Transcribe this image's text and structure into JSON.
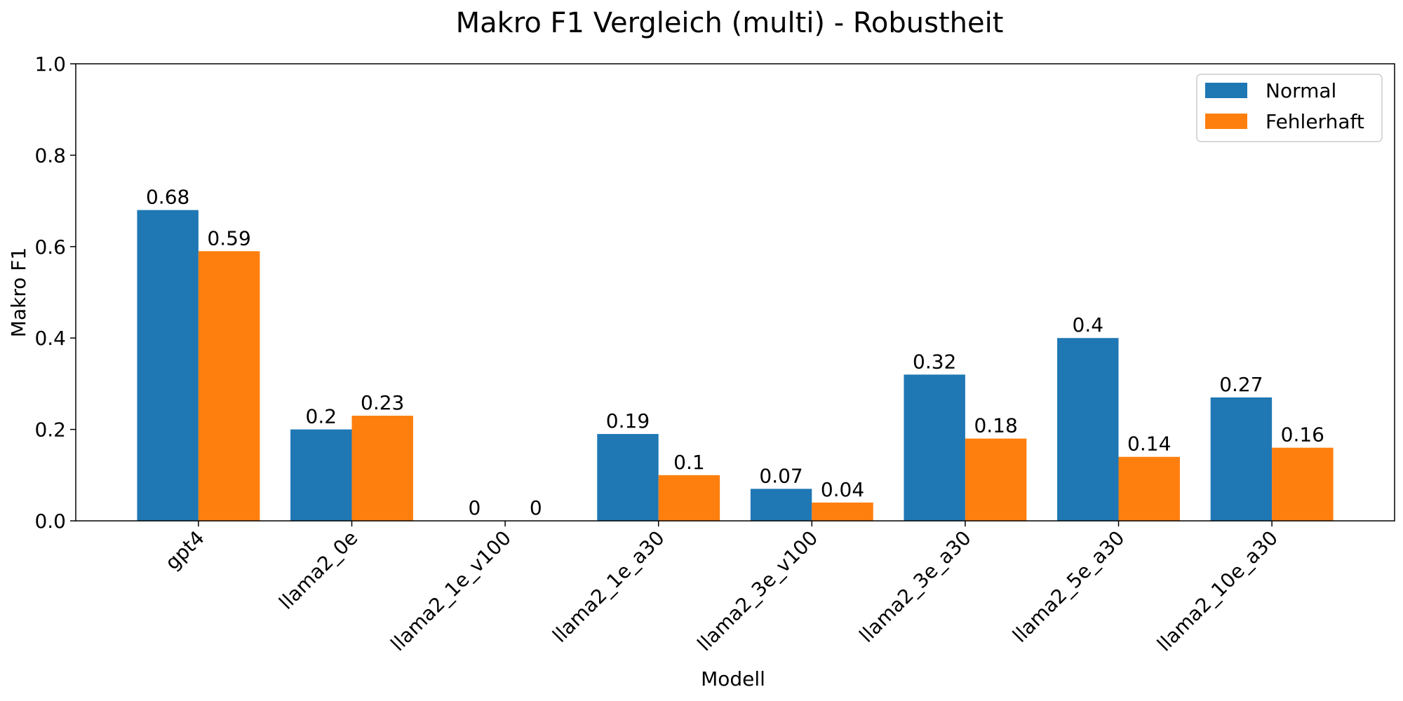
{
  "chart_data": {
    "type": "bar",
    "title": "Makro F1 Vergleich (multi) - Robustheit",
    "xlabel": "Modell",
    "ylabel": "Makro F1",
    "ylim": [
      0,
      1.0
    ],
    "yticks": [
      "0.0",
      "0.2",
      "0.4",
      "0.6",
      "0.8",
      "1.0"
    ],
    "grid": false,
    "legend_position": "top-right",
    "categories": [
      "gpt4",
      "llama2_0e",
      "llama2_1e_v100",
      "llama2_1e_a30",
      "llama2_3e_v100",
      "llama2_3e_a30",
      "llama2_5e_a30",
      "llama2_10e_a30"
    ],
    "series": [
      {
        "name": "Normal",
        "color": "#1f77b4",
        "values": [
          0.68,
          0.2,
          0,
          0.19,
          0.07,
          0.32,
          0.4,
          0.27
        ]
      },
      {
        "name": "Fehlerhaft",
        "color": "#ff7f0e",
        "values": [
          0.59,
          0.23,
          0,
          0.1,
          0.04,
          0.18,
          0.14,
          0.16
        ]
      }
    ]
  }
}
